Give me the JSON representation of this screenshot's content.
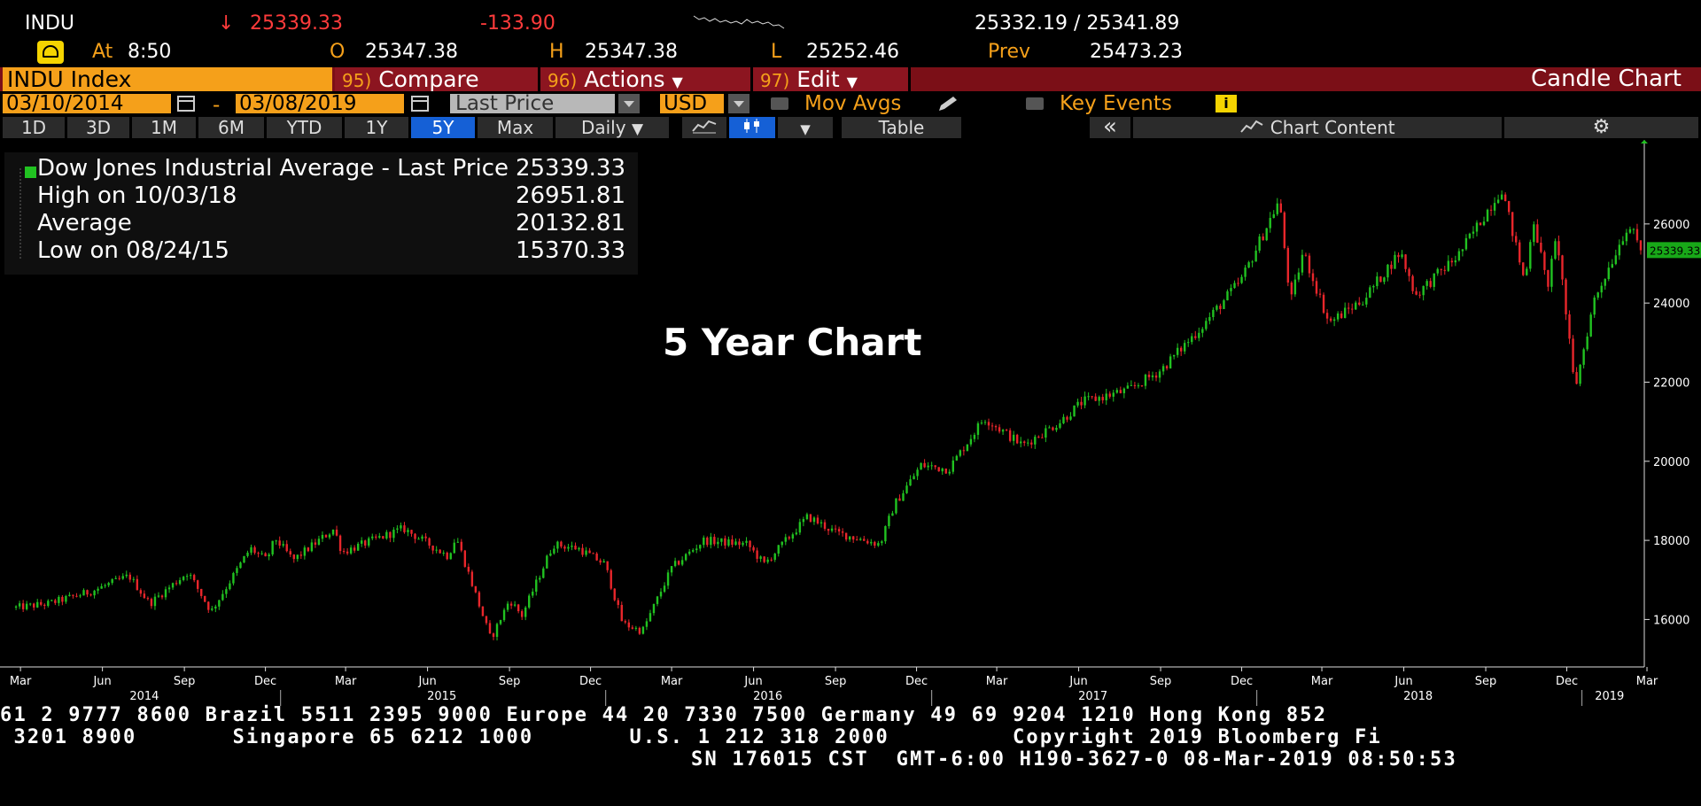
{
  "quote": {
    "ticker": "INDU",
    "arrow": "↓",
    "last": "25339.33",
    "change": "-133.90",
    "bid_ask": "25332.19 / 25341.89",
    "at_label": "At",
    "time": "8:50",
    "open_label": "O",
    "open": "25347.38",
    "high_label": "H",
    "high": "25347.38",
    "low_label": "L",
    "low": "25252.46",
    "prev_label": "Prev",
    "prev": "25473.23"
  },
  "toolbar": {
    "index_name": "INDU Index",
    "compare_num": "95)",
    "compare_label": "Compare",
    "actions_num": "96)",
    "actions_label": "Actions",
    "edit_num": "97)",
    "edit_label": "Edit",
    "chart_type": "Candle Chart",
    "start_date": "03/10/2014",
    "date_sep": "-",
    "end_date": "03/08/2019",
    "price_field": "Last Price",
    "currency": "USD",
    "mov_avgs": "Mov Avgs",
    "key_events": "Key Events",
    "info_icon_text": "i"
  },
  "ranges": [
    "1D",
    "3D",
    "1M",
    "6M",
    "YTD",
    "1Y",
    "5Y",
    "Max"
  ],
  "active_range": "5Y",
  "frequency": "Daily",
  "table_label": "Table",
  "collapse_label": "«",
  "chart_content_label": "Chart Content",
  "legend": {
    "rows": [
      {
        "label": "Dow Jones Industrial Average - Last Price",
        "value": "25339.33"
      },
      {
        "label": "High on 10/03/18",
        "value": "26951.81"
      },
      {
        "label": "Average",
        "value": "20132.81"
      },
      {
        "label": "Low on 08/24/15",
        "value": "15370.33"
      }
    ]
  },
  "chart_title": "5 Year Chart",
  "footer": {
    "line1": "61 2 9777 8600 Brazil 5511 2395 9000 Europe 44 20 7330 7500 Germany 49 69 9204 1210 Hong Kong 852",
    "line2": " 3201 8900       Singapore 65 6212 1000       U.S. 1 212 318 2000         Copyright 2019 Bloomberg Fi",
    "line3": "SN 176015 CST  GMT-6:00 H190-3627-0 08-Mar-2019 08:50:53"
  },
  "colors": {
    "up": "#21c221",
    "down": "#e8262b",
    "accent_orange": "#f5a01a",
    "bar_red": "#8c1520",
    "price_tag": "#18a818"
  },
  "chart_data": {
    "type": "line",
    "title": "5 Year Chart",
    "series": [
      {
        "name": "Dow Jones Industrial Average - Last Price",
        "x": [
          "2014-03-10",
          "2014-04-15",
          "2014-06-01",
          "2014-07-15",
          "2014-08-07",
          "2014-09-19",
          "2014-10-15",
          "2014-11-28",
          "2014-12-16",
          "2014-12-26",
          "2015-01-15",
          "2015-03-02",
          "2015-03-11",
          "2015-05-19",
          "2015-07-08",
          "2015-07-17",
          "2015-08-25",
          "2015-09-15",
          "2015-09-29",
          "2015-11-03",
          "2015-12-01",
          "2015-12-31",
          "2016-01-20",
          "2016-02-11",
          "2016-03-15",
          "2016-04-20",
          "2016-06-08",
          "2016-06-27",
          "2016-08-15",
          "2016-09-15",
          "2016-11-04",
          "2016-11-20",
          "2016-12-20",
          "2017-01-20",
          "2017-03-01",
          "2017-04-13",
          "2017-05-25",
          "2017-06-19",
          "2017-08-10",
          "2017-09-15",
          "2017-10-31",
          "2017-12-15",
          "2018-01-26",
          "2018-02-08",
          "2018-02-22",
          "2018-03-23",
          "2018-05-01",
          "2018-06-11",
          "2018-06-28",
          "2018-08-15",
          "2018-10-03",
          "2018-10-29",
          "2018-11-07",
          "2018-11-23",
          "2018-12-04",
          "2018-12-24",
          "2019-01-15",
          "2019-02-22",
          "2019-03-08"
        ],
        "values": [
          16300,
          16400,
          16700,
          17100,
          16400,
          17200,
          16200,
          17800,
          17500,
          18050,
          17500,
          18290,
          17700,
          18300,
          17600,
          18100,
          15500,
          16500,
          16100,
          17900,
          17800,
          17400,
          15900,
          15700,
          17300,
          18000,
          17900,
          17400,
          18600,
          18200,
          17900,
          18900,
          19900,
          19800,
          21100,
          20400,
          21000,
          21500,
          21800,
          22300,
          23400,
          24600,
          26600,
          24000,
          25300,
          23500,
          24100,
          25300,
          24200,
          25200,
          26900,
          24500,
          26200,
          24400,
          25700,
          21800,
          24100,
          26000,
          25339
        ]
      }
    ],
    "x_ticks": [
      "Mar",
      "Jun",
      "Sep",
      "Dec",
      "Mar",
      "Jun",
      "Sep",
      "Dec",
      "Mar",
      "Jun",
      "Sep",
      "Dec",
      "Mar",
      "Jun",
      "Sep",
      "Dec",
      "Mar",
      "Jun",
      "Sep",
      "Dec",
      "Mar"
    ],
    "x_years": [
      "2014",
      "2015",
      "2016",
      "2017",
      "2018",
      "2019"
    ],
    "y_ticks": [
      16000,
      18000,
      20000,
      22000,
      24000,
      26000
    ],
    "ylim": [
      14800,
      27900
    ],
    "last_price_tag": "25339.33",
    "grid": false,
    "legend_position": "top-left"
  }
}
